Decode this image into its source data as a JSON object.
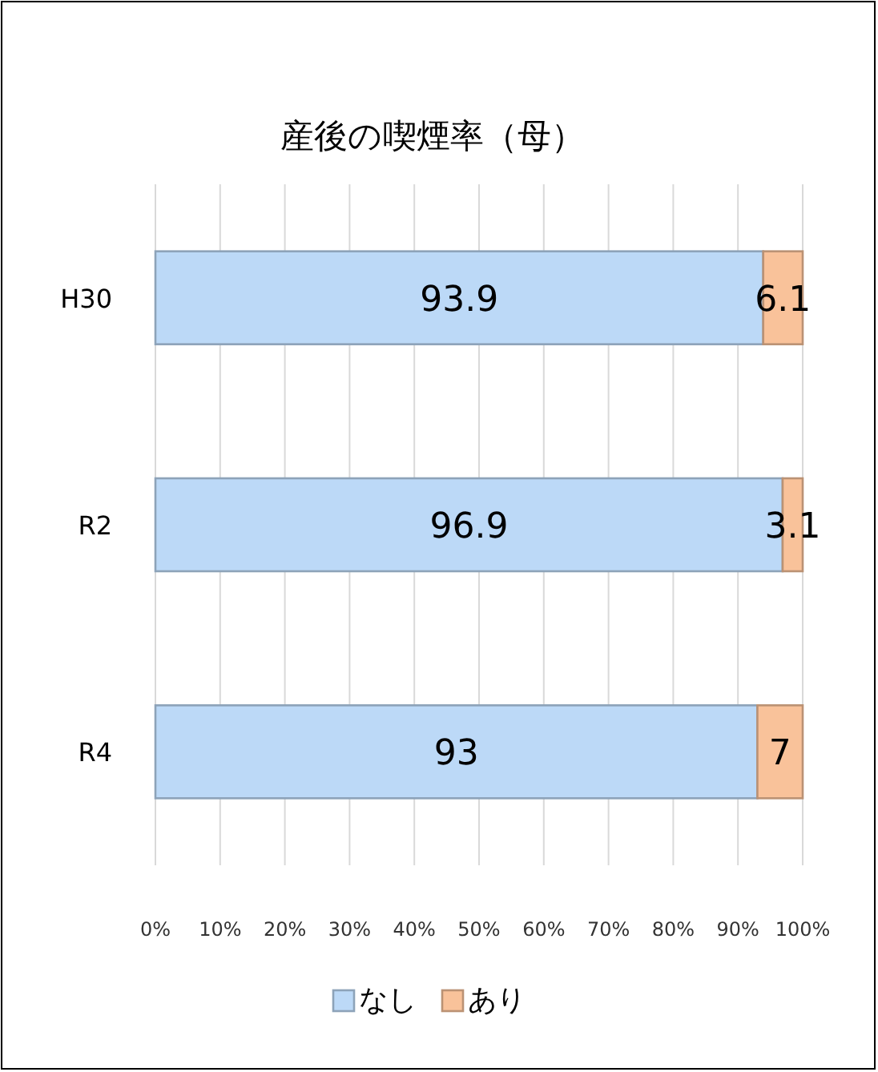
{
  "chart_data": {
    "type": "bar",
    "orientation": "horizontal",
    "stacked": true,
    "title": "産後の喫煙率（母）",
    "categories": [
      "H30",
      "R2",
      "R4"
    ],
    "series": [
      {
        "name": "なし",
        "color": "#bcd9f7",
        "values": [
          93.9,
          96.9,
          93
        ]
      },
      {
        "name": "あり",
        "color": "#f9c29a",
        "values": [
          6.1,
          3.1,
          7
        ]
      }
    ],
    "xlim": [
      0,
      100
    ],
    "xticks": [
      {
        "value": 0,
        "label": "0%"
      },
      {
        "value": 10,
        "label": "10%"
      },
      {
        "value": 20,
        "label": "20%"
      },
      {
        "value": 30,
        "label": "30%"
      },
      {
        "value": 40,
        "label": "40%"
      },
      {
        "value": 50,
        "label": "50%"
      },
      {
        "value": 60,
        "label": "60%"
      },
      {
        "value": 70,
        "label": "70%"
      },
      {
        "value": 80,
        "label": "80%"
      },
      {
        "value": 90,
        "label": "90%"
      },
      {
        "value": 100,
        "label": "100%"
      }
    ],
    "grid": "x",
    "legend": "bottom",
    "data_labels": true
  }
}
